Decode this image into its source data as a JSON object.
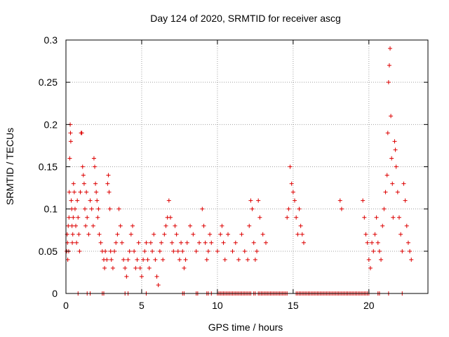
{
  "chart_data": {
    "type": "scatter",
    "title": "Day 124 of 2020, SRMTID for receiver ascg",
    "xlabel": "GPS time / hours",
    "ylabel": "SRMTID / TECUs",
    "xlim": [
      0,
      23.9
    ],
    "ylim": [
      0,
      0.3
    ],
    "x_ticks": [
      0,
      5,
      10,
      15,
      20
    ],
    "x_tick_labels": [
      "0",
      "5",
      "10",
      "15",
      "20"
    ],
    "y_ticks": [
      0,
      0.05,
      0.1,
      0.15,
      0.2,
      0.25,
      0.3
    ],
    "y_tick_labels": [
      "0",
      "0.05",
      "0.1",
      "0.15",
      "0.2",
      "0.25",
      "0.3"
    ],
    "grid": true,
    "marker": "plus",
    "series": [
      {
        "name": "SRMTID",
        "color": "#dd0000",
        "points": [
          [
            0.05,
            0.05
          ],
          [
            0.08,
            0.07
          ],
          [
            0.1,
            0.06
          ],
          [
            0.12,
            0.04
          ],
          [
            0.15,
            0.08
          ],
          [
            0.18,
            0.05
          ],
          [
            0.2,
            0.09
          ],
          [
            0.22,
            0.12
          ],
          [
            0.25,
            0.16
          ],
          [
            0.28,
            0.2
          ],
          [
            0.3,
            0.19
          ],
          [
            0.32,
            0.18
          ],
          [
            0.35,
            0.11
          ],
          [
            0.38,
            0.1
          ],
          [
            0.4,
            0.08
          ],
          [
            0.42,
            0.06
          ],
          [
            0.45,
            0.07
          ],
          [
            0.48,
            0.09
          ],
          [
            0.5,
            0.13
          ],
          [
            0.55,
            0.12
          ],
          [
            0.6,
            0.1
          ],
          [
            0.65,
            0.08
          ],
          [
            0.7,
            0.06
          ],
          [
            0.75,
            0.11
          ],
          [
            0.8,
            0.09
          ],
          [
            0.85,
            0.07
          ],
          [
            0.9,
            0.05
          ],
          [
            0.95,
            0.12
          ],
          [
            1.0,
            0.19
          ],
          [
            1.05,
            0.19
          ],
          [
            1.1,
            0.15
          ],
          [
            1.15,
            0.14
          ],
          [
            1.2,
            0.13
          ],
          [
            1.25,
            0.1
          ],
          [
            1.3,
            0.08
          ],
          [
            1.35,
            0.12
          ],
          [
            1.4,
            0.09
          ],
          [
            1.5,
            0.07
          ],
          [
            1.6,
            0.11
          ],
          [
            1.7,
            0.1
          ],
          [
            1.8,
            0.08
          ],
          [
            1.85,
            0.16
          ],
          [
            1.9,
            0.15
          ],
          [
            1.95,
            0.13
          ],
          [
            2.0,
            0.12
          ],
          [
            2.05,
            0.11
          ],
          [
            2.1,
            0.09
          ],
          [
            2.15,
            0.1
          ],
          [
            2.2,
            0.07
          ],
          [
            2.3,
            0.06
          ],
          [
            2.4,
            0.05
          ],
          [
            2.5,
            0.04
          ],
          [
            2.55,
            0.03
          ],
          [
            2.6,
            0.05
          ],
          [
            2.7,
            0.04
          ],
          [
            2.75,
            0.13
          ],
          [
            2.8,
            0.14
          ],
          [
            2.85,
            0.12
          ],
          [
            2.9,
            0.1
          ],
          [
            2.95,
            0.05
          ],
          [
            3.0,
            0.04
          ],
          [
            3.1,
            0.03
          ],
          [
            3.2,
            0.05
          ],
          [
            3.3,
            0.06
          ],
          [
            3.4,
            0.07
          ],
          [
            3.5,
            0.1
          ],
          [
            3.6,
            0.08
          ],
          [
            3.7,
            0.06
          ],
          [
            3.8,
            0.04
          ],
          [
            3.9,
            0.03
          ],
          [
            4.0,
            0.02
          ],
          [
            4.1,
            0.04
          ],
          [
            4.2,
            0.05
          ],
          [
            4.3,
            0.07
          ],
          [
            4.4,
            0.08
          ],
          [
            4.5,
            0.05
          ],
          [
            4.6,
            0.03
          ],
          [
            4.7,
            0.04
          ],
          [
            4.8,
            0.06
          ],
          [
            4.9,
            0.03
          ],
          [
            5.0,
            0.02
          ],
          [
            5.1,
            0.04
          ],
          [
            5.2,
            0.05
          ],
          [
            5.3,
            0.06
          ],
          [
            5.4,
            0.04
          ],
          [
            5.5,
            0.03
          ],
          [
            5.6,
            0.06
          ],
          [
            5.7,
            0.05
          ],
          [
            5.8,
            0.07
          ],
          [
            5.9,
            0.04
          ],
          [
            6.0,
            0.02
          ],
          [
            6.1,
            0.01
          ],
          [
            6.2,
            0.05
          ],
          [
            6.3,
            0.06
          ],
          [
            6.4,
            0.04
          ],
          [
            6.5,
            0.07
          ],
          [
            6.6,
            0.08
          ],
          [
            6.7,
            0.09
          ],
          [
            6.8,
            0.11
          ],
          [
            6.9,
            0.09
          ],
          [
            7.0,
            0.06
          ],
          [
            7.1,
            0.05
          ],
          [
            7.2,
            0.08
          ],
          [
            7.3,
            0.07
          ],
          [
            7.4,
            0.05
          ],
          [
            7.5,
            0.04
          ],
          [
            7.6,
            0.06
          ],
          [
            7.7,
            0.05
          ],
          [
            7.8,
            0.03
          ],
          [
            7.9,
            0.04
          ],
          [
            8.0,
            0.06
          ],
          [
            8.2,
            0.08
          ],
          [
            8.4,
            0.07
          ],
          [
            8.6,
            0.05
          ],
          [
            8.8,
            0.06
          ],
          [
            9.0,
            0.1
          ],
          [
            9.1,
            0.08
          ],
          [
            9.2,
            0.06
          ],
          [
            9.3,
            0.04
          ],
          [
            9.4,
            0.05
          ],
          [
            9.5,
            0.07
          ],
          [
            9.6,
            0.06
          ],
          [
            10.0,
            0.05
          ],
          [
            10.2,
            0.07
          ],
          [
            10.3,
            0.08
          ],
          [
            10.4,
            0.06
          ],
          [
            10.5,
            0.04
          ],
          [
            10.7,
            0.07
          ],
          [
            11.0,
            0.05
          ],
          [
            11.2,
            0.06
          ],
          [
            11.4,
            0.04
          ],
          [
            11.6,
            0.07
          ],
          [
            11.8,
            0.05
          ],
          [
            12.0,
            0.04
          ],
          [
            12.1,
            0.08
          ],
          [
            12.2,
            0.11
          ],
          [
            12.3,
            0.1
          ],
          [
            12.4,
            0.06
          ],
          [
            12.5,
            0.04
          ],
          [
            12.6,
            0.05
          ],
          [
            12.7,
            0.11
          ],
          [
            12.8,
            0.09
          ],
          [
            13.0,
            0.07
          ],
          [
            13.2,
            0.06
          ],
          [
            14.6,
            0.09
          ],
          [
            14.7,
            0.1
          ],
          [
            14.8,
            0.15
          ],
          [
            14.9,
            0.13
          ],
          [
            15.0,
            0.12
          ],
          [
            15.1,
            0.11
          ],
          [
            15.2,
            0.09
          ],
          [
            15.3,
            0.07
          ],
          [
            15.4,
            0.1
          ],
          [
            15.5,
            0.08
          ],
          [
            15.6,
            0.07
          ],
          [
            15.7,
            0.06
          ],
          [
            18.1,
            0.11
          ],
          [
            18.2,
            0.1
          ],
          [
            19.6,
            0.11
          ],
          [
            19.7,
            0.09
          ],
          [
            19.8,
            0.07
          ],
          [
            19.9,
            0.06
          ],
          [
            20.0,
            0.04
          ],
          [
            20.1,
            0.03
          ],
          [
            20.2,
            0.06
          ],
          [
            20.3,
            0.05
          ],
          [
            20.4,
            0.07
          ],
          [
            20.5,
            0.09
          ],
          [
            20.6,
            0.06
          ],
          [
            20.7,
            0.05
          ],
          [
            20.8,
            0.04
          ],
          [
            20.9,
            0.08
          ],
          [
            21.0,
            0.1
          ],
          [
            21.1,
            0.12
          ],
          [
            21.2,
            0.14
          ],
          [
            21.25,
            0.19
          ],
          [
            21.3,
            0.25
          ],
          [
            21.35,
            0.27
          ],
          [
            21.4,
            0.29
          ],
          [
            21.45,
            0.21
          ],
          [
            21.5,
            0.16
          ],
          [
            21.55,
            0.13
          ],
          [
            21.6,
            0.09
          ],
          [
            21.7,
            0.18
          ],
          [
            21.75,
            0.17
          ],
          [
            21.8,
            0.15
          ],
          [
            21.9,
            0.12
          ],
          [
            22.0,
            0.09
          ],
          [
            22.1,
            0.07
          ],
          [
            22.2,
            0.05
          ],
          [
            22.3,
            0.13
          ],
          [
            22.4,
            0.11
          ],
          [
            22.5,
            0.08
          ],
          [
            22.6,
            0.06
          ],
          [
            22.7,
            0.05
          ],
          [
            22.8,
            0.04
          ],
          [
            0.8,
            0
          ],
          [
            1.4,
            0
          ],
          [
            1.6,
            0
          ],
          [
            2.4,
            0
          ],
          [
            2.5,
            0
          ],
          [
            3.9,
            0
          ],
          [
            4.1,
            0
          ],
          [
            5.3,
            0
          ],
          [
            7.7,
            0
          ],
          [
            7.8,
            0
          ],
          [
            8.6,
            0
          ],
          [
            8.7,
            0
          ],
          [
            9.3,
            0
          ],
          [
            9.4,
            0
          ],
          [
            9.6,
            0
          ],
          [
            10.0,
            0
          ],
          [
            10.1,
            0
          ],
          [
            10.2,
            0
          ],
          [
            10.3,
            0
          ],
          [
            10.4,
            0
          ],
          [
            10.5,
            0
          ],
          [
            10.6,
            0
          ],
          [
            10.7,
            0
          ],
          [
            10.8,
            0
          ],
          [
            10.9,
            0
          ],
          [
            11.0,
            0
          ],
          [
            11.1,
            0
          ],
          [
            11.2,
            0
          ],
          [
            11.3,
            0
          ],
          [
            11.4,
            0
          ],
          [
            11.5,
            0
          ],
          [
            11.6,
            0
          ],
          [
            11.7,
            0
          ],
          [
            11.8,
            0
          ],
          [
            11.9,
            0
          ],
          [
            12.0,
            0
          ],
          [
            12.1,
            0
          ],
          [
            12.2,
            0
          ],
          [
            12.4,
            0
          ],
          [
            12.5,
            0
          ],
          [
            12.7,
            0
          ],
          [
            12.8,
            0
          ],
          [
            12.9,
            0
          ],
          [
            13.0,
            0
          ],
          [
            13.1,
            0
          ],
          [
            13.2,
            0
          ],
          [
            13.3,
            0
          ],
          [
            13.4,
            0
          ],
          [
            13.5,
            0
          ],
          [
            13.6,
            0
          ],
          [
            13.7,
            0
          ],
          [
            13.8,
            0
          ],
          [
            13.9,
            0
          ],
          [
            14.0,
            0
          ],
          [
            14.1,
            0
          ],
          [
            14.2,
            0
          ],
          [
            14.3,
            0
          ],
          [
            14.4,
            0
          ],
          [
            14.5,
            0
          ],
          [
            14.6,
            0
          ],
          [
            15.2,
            0
          ],
          [
            15.3,
            0
          ],
          [
            15.4,
            0
          ],
          [
            15.5,
            0
          ],
          [
            15.6,
            0
          ],
          [
            15.7,
            0
          ],
          [
            15.8,
            0
          ],
          [
            15.9,
            0
          ],
          [
            16.0,
            0
          ],
          [
            16.1,
            0
          ],
          [
            16.2,
            0
          ],
          [
            16.3,
            0
          ],
          [
            16.4,
            0
          ],
          [
            16.5,
            0
          ],
          [
            16.6,
            0
          ],
          [
            16.7,
            0
          ],
          [
            16.8,
            0
          ],
          [
            16.9,
            0
          ],
          [
            17.0,
            0
          ],
          [
            17.1,
            0
          ],
          [
            17.2,
            0
          ],
          [
            17.3,
            0
          ],
          [
            17.4,
            0
          ],
          [
            17.5,
            0
          ],
          [
            17.6,
            0
          ],
          [
            17.7,
            0
          ],
          [
            17.8,
            0
          ],
          [
            17.9,
            0
          ],
          [
            18.0,
            0
          ],
          [
            18.1,
            0
          ],
          [
            18.2,
            0
          ],
          [
            18.3,
            0
          ],
          [
            18.4,
            0
          ],
          [
            18.5,
            0
          ],
          [
            18.6,
            0
          ],
          [
            18.7,
            0
          ],
          [
            18.8,
            0
          ],
          [
            18.9,
            0
          ],
          [
            19.0,
            0
          ],
          [
            19.1,
            0
          ],
          [
            19.2,
            0
          ],
          [
            19.3,
            0
          ],
          [
            19.4,
            0
          ],
          [
            19.5,
            0
          ],
          [
            19.6,
            0
          ],
          [
            19.7,
            0
          ],
          [
            19.8,
            0
          ],
          [
            19.9,
            0
          ],
          [
            20.0,
            0
          ],
          [
            20.6,
            0
          ],
          [
            20.7,
            0
          ],
          [
            21.3,
            0
          ],
          [
            22.2,
            0
          ]
        ]
      }
    ]
  }
}
